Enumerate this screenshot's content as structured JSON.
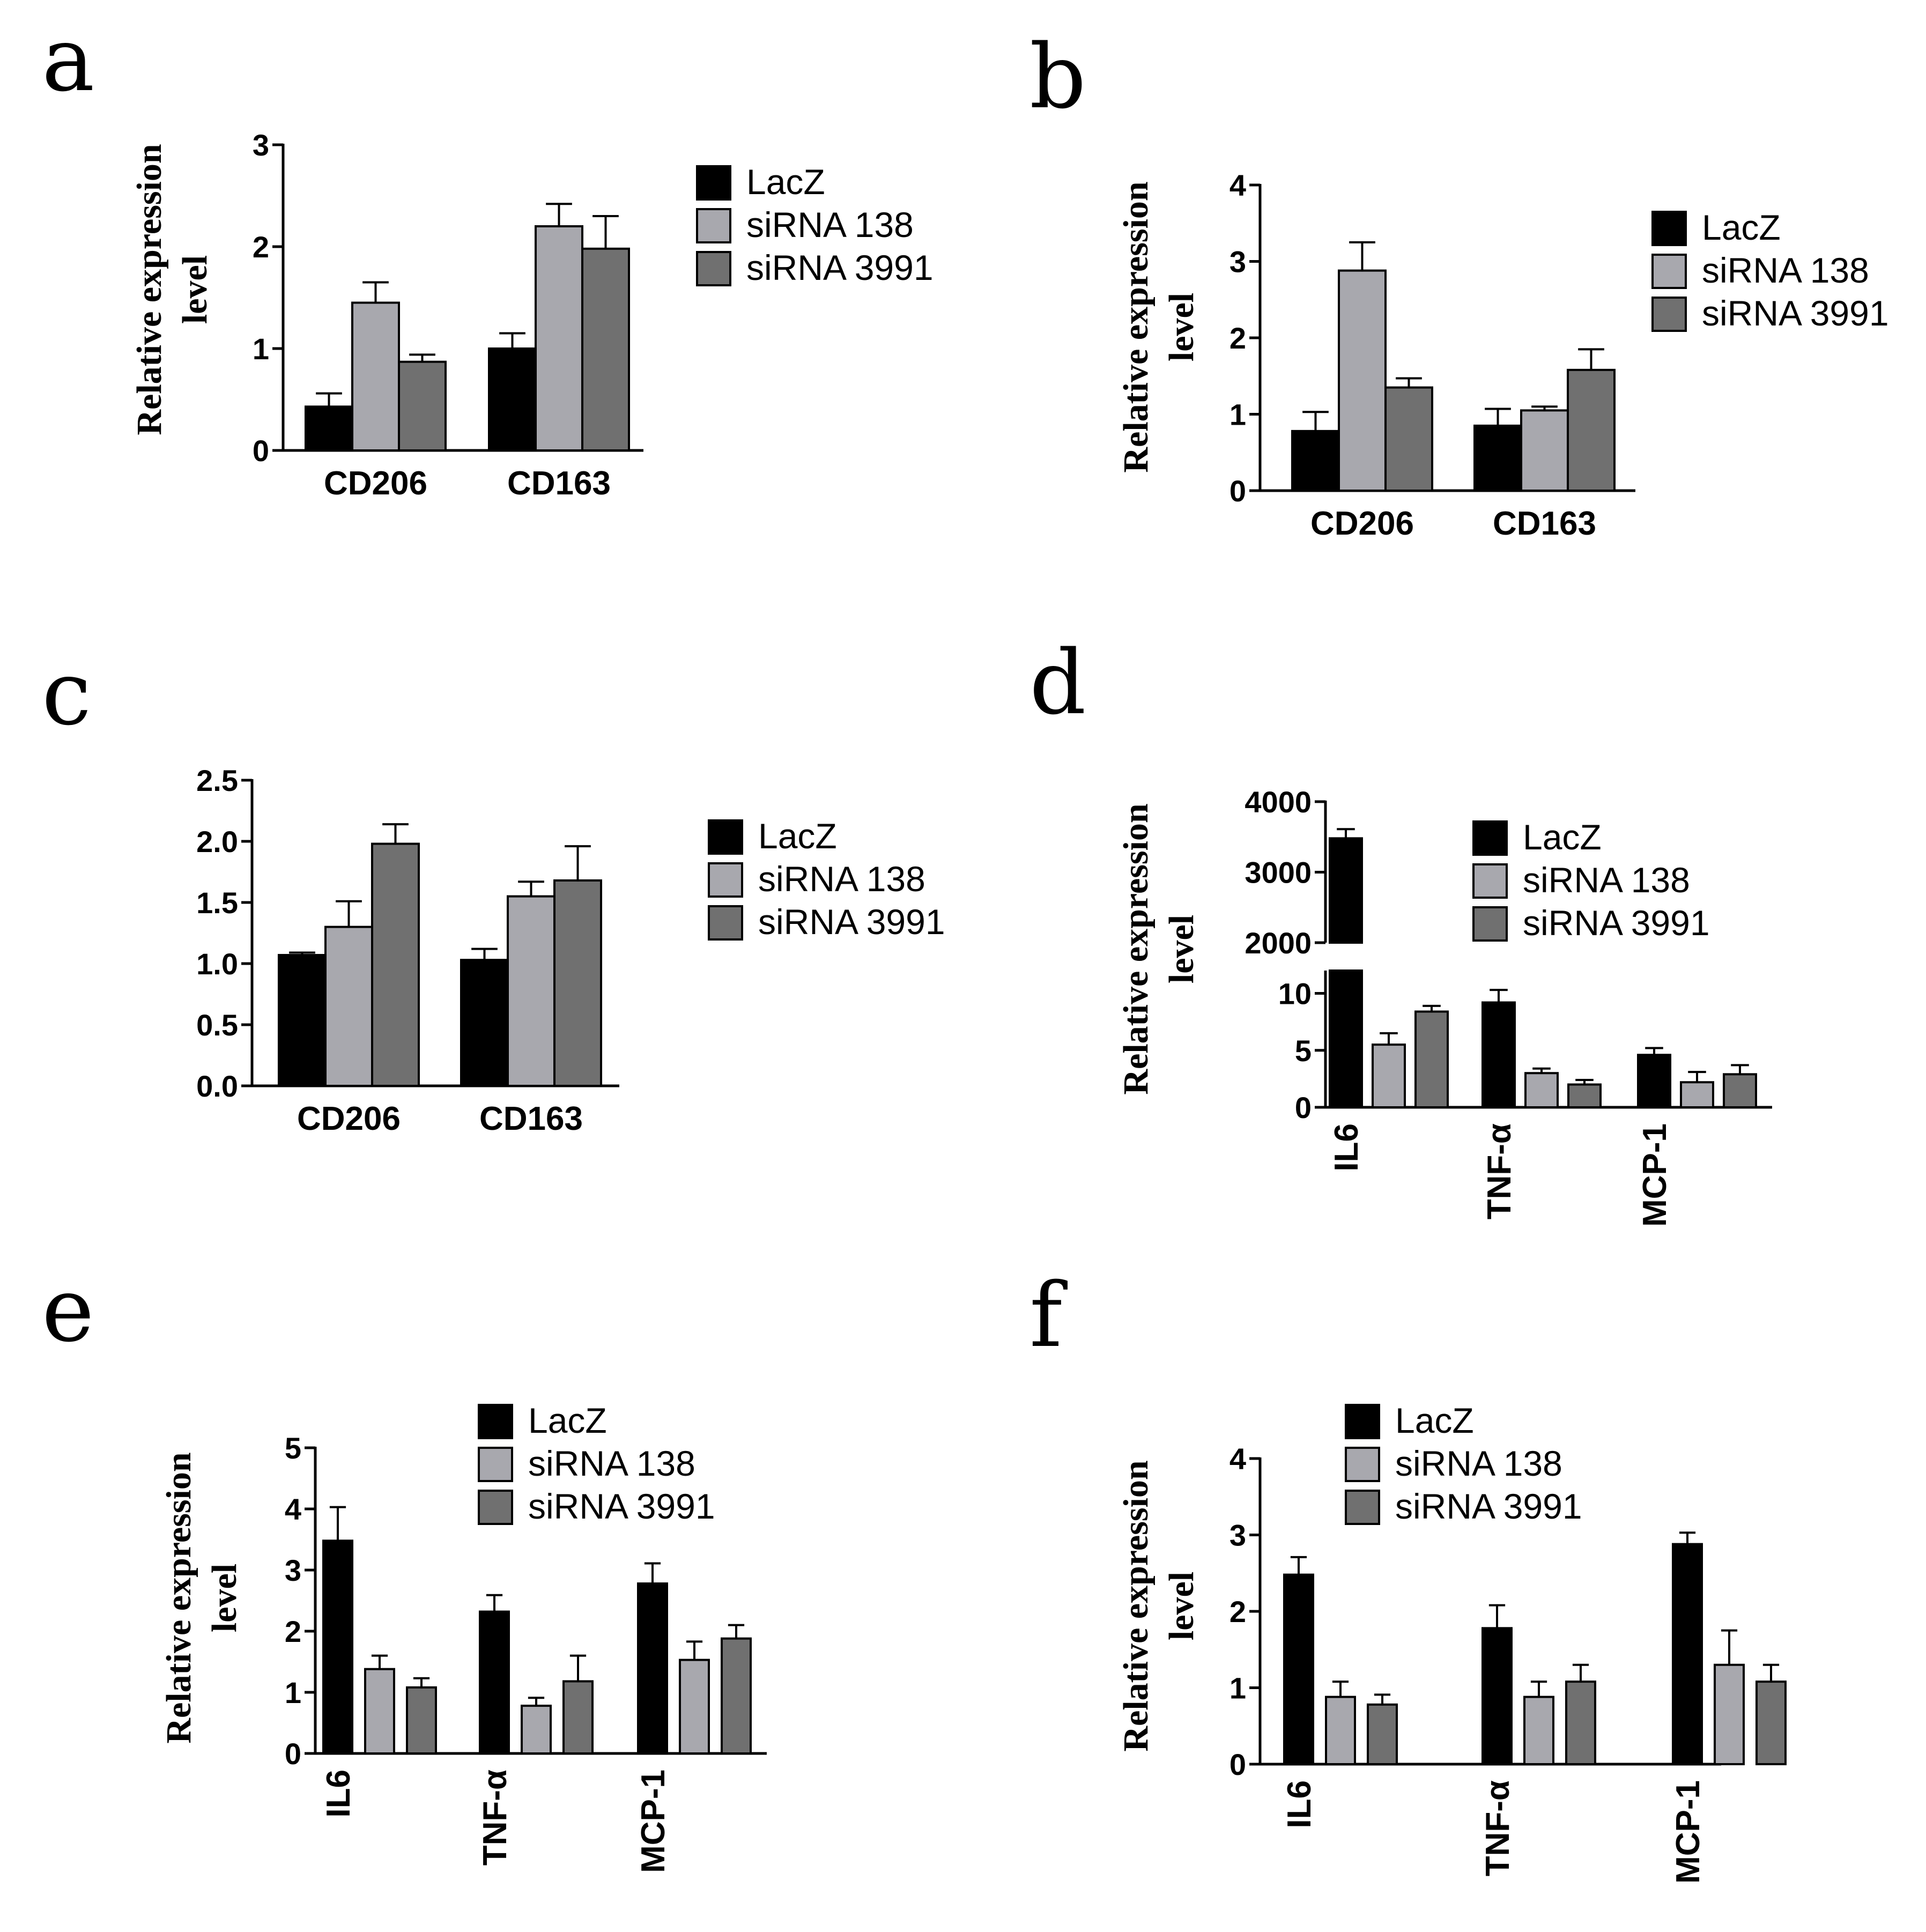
{
  "series_names": [
    "LacZ",
    "siRNA 138",
    "siRNA 3991"
  ],
  "series_colors": [
    "#000000",
    "#a8a8ae",
    "#707070"
  ],
  "chart_data": [
    {
      "id": "a",
      "letter": "a",
      "type": "bar",
      "ylabel": [
        "Relative expression",
        "level"
      ],
      "ylim": [
        0,
        3
      ],
      "yticks": [
        "0",
        "1",
        "2",
        "3"
      ],
      "ytick_values": [
        0,
        1,
        2,
        3
      ],
      "categories": [
        "CD206",
        "CD163"
      ],
      "rotate_categories": false,
      "series": [
        {
          "name": "LacZ",
          "values": [
            0.43,
            1.0
          ],
          "errors": [
            0.13,
            0.15
          ]
        },
        {
          "name": "siRNA 138",
          "values": [
            1.45,
            2.2
          ],
          "errors": [
            0.2,
            0.22
          ]
        },
        {
          "name": "siRNA 3991",
          "values": [
            0.87,
            1.98
          ],
          "errors": [
            0.07,
            0.32
          ]
        }
      ]
    },
    {
      "id": "b",
      "letter": "b",
      "type": "bar",
      "ylabel": [
        "Relative expression",
        "level"
      ],
      "ylim": [
        0,
        4
      ],
      "yticks": [
        "0",
        "1",
        "2",
        "3",
        "4"
      ],
      "ytick_values": [
        0,
        1,
        2,
        3,
        4
      ],
      "categories": [
        "CD206",
        "CD163"
      ],
      "rotate_categories": false,
      "series": [
        {
          "name": "LacZ",
          "values": [
            0.78,
            0.85
          ],
          "errors": [
            0.25,
            0.22
          ]
        },
        {
          "name": "siRNA 138",
          "values": [
            2.88,
            1.05
          ],
          "errors": [
            0.37,
            0.05
          ]
        },
        {
          "name": "siRNA 3991",
          "values": [
            1.35,
            1.58
          ],
          "errors": [
            0.12,
            0.27
          ]
        }
      ]
    },
    {
      "id": "c",
      "letter": "c",
      "type": "bar",
      "ylabel": null,
      "ylim": [
        0,
        2.5
      ],
      "yticks": [
        "0.0",
        "0.5",
        "1.0",
        "1.5",
        "2.0",
        "2.5"
      ],
      "ytick_values": [
        0,
        0.5,
        1.0,
        1.5,
        2.0,
        2.5
      ],
      "categories": [
        "CD206",
        "CD163"
      ],
      "rotate_categories": false,
      "series": [
        {
          "name": "LacZ",
          "values": [
            1.07,
            1.03
          ],
          "errors": [
            0.02,
            0.09
          ]
        },
        {
          "name": "siRNA 138",
          "values": [
            1.3,
            1.55
          ],
          "errors": [
            0.21,
            0.12
          ]
        },
        {
          "name": "siRNA 3991",
          "values": [
            1.98,
            1.68
          ],
          "errors": [
            0.16,
            0.28
          ]
        }
      ]
    },
    {
      "id": "d",
      "letter": "d",
      "type": "bar",
      "broken_axis": true,
      "ylabel": [
        "Relative expression",
        "level"
      ],
      "ylim_low": [
        0,
        12
      ],
      "ylim_high": [
        2000,
        4000
      ],
      "yticks": [
        "0",
        "5",
        "10",
        "2000",
        "3000",
        "4000"
      ],
      "yticks_low": [
        0,
        5,
        10
      ],
      "yticks_high": [
        2000,
        3000,
        4000
      ],
      "categories": [
        "IL6",
        "TNF-α",
        "MCP-1"
      ],
      "rotate_categories": true,
      "series": [
        {
          "name": "LacZ",
          "values": [
            3480,
            9.2,
            4.6
          ],
          "errors": [
            130,
            1.1,
            0.6
          ]
        },
        {
          "name": "siRNA 138",
          "values": [
            5.5,
            3.0,
            2.2
          ],
          "errors": [
            1.0,
            0.4,
            0.9
          ]
        },
        {
          "name": "siRNA 3991",
          "values": [
            8.4,
            2.0,
            2.9
          ],
          "errors": [
            0.5,
            0.4,
            0.8
          ]
        }
      ]
    },
    {
      "id": "e",
      "letter": "e",
      "type": "bar",
      "ylabel": [
        "Relative expression",
        "level"
      ],
      "ylim": [
        0,
        5
      ],
      "yticks": [
        "0",
        "1",
        "2",
        "3",
        "4",
        "5"
      ],
      "ytick_values": [
        0,
        1,
        2,
        3,
        4,
        5
      ],
      "categories": [
        "IL6",
        "TNF-α",
        "MCP-1"
      ],
      "rotate_categories": true,
      "series": [
        {
          "name": "LacZ",
          "values": [
            3.48,
            2.32,
            2.78
          ],
          "errors": [
            0.55,
            0.27,
            0.33
          ]
        },
        {
          "name": "siRNA 138",
          "values": [
            1.38,
            0.78,
            1.53
          ],
          "errors": [
            0.22,
            0.13,
            0.3
          ]
        },
        {
          "name": "siRNA 3991",
          "values": [
            1.08,
            1.18,
            1.88
          ],
          "errors": [
            0.15,
            0.42,
            0.22
          ]
        }
      ]
    },
    {
      "id": "f",
      "letter": "f",
      "type": "bar",
      "ylabel": [
        "Relative expression",
        "level"
      ],
      "ylim": [
        0,
        4
      ],
      "yticks": [
        "0",
        "1",
        "2",
        "3",
        "4"
      ],
      "ytick_values": [
        0,
        1,
        2,
        3,
        4
      ],
      "categories": [
        "IL6",
        "TNF-α",
        "MCP-1"
      ],
      "rotate_categories": true,
      "series": [
        {
          "name": "LacZ",
          "values": [
            2.48,
            1.78,
            2.88
          ],
          "errors": [
            0.23,
            0.3,
            0.15
          ]
        },
        {
          "name": "siRNA 138",
          "values": [
            0.88,
            0.88,
            1.3
          ],
          "errors": [
            0.2,
            0.2,
            0.45
          ]
        },
        {
          "name": "siRNA 3991",
          "values": [
            0.78,
            1.08,
            1.08
          ],
          "errors": [
            0.13,
            0.22,
            0.22
          ]
        }
      ]
    }
  ]
}
